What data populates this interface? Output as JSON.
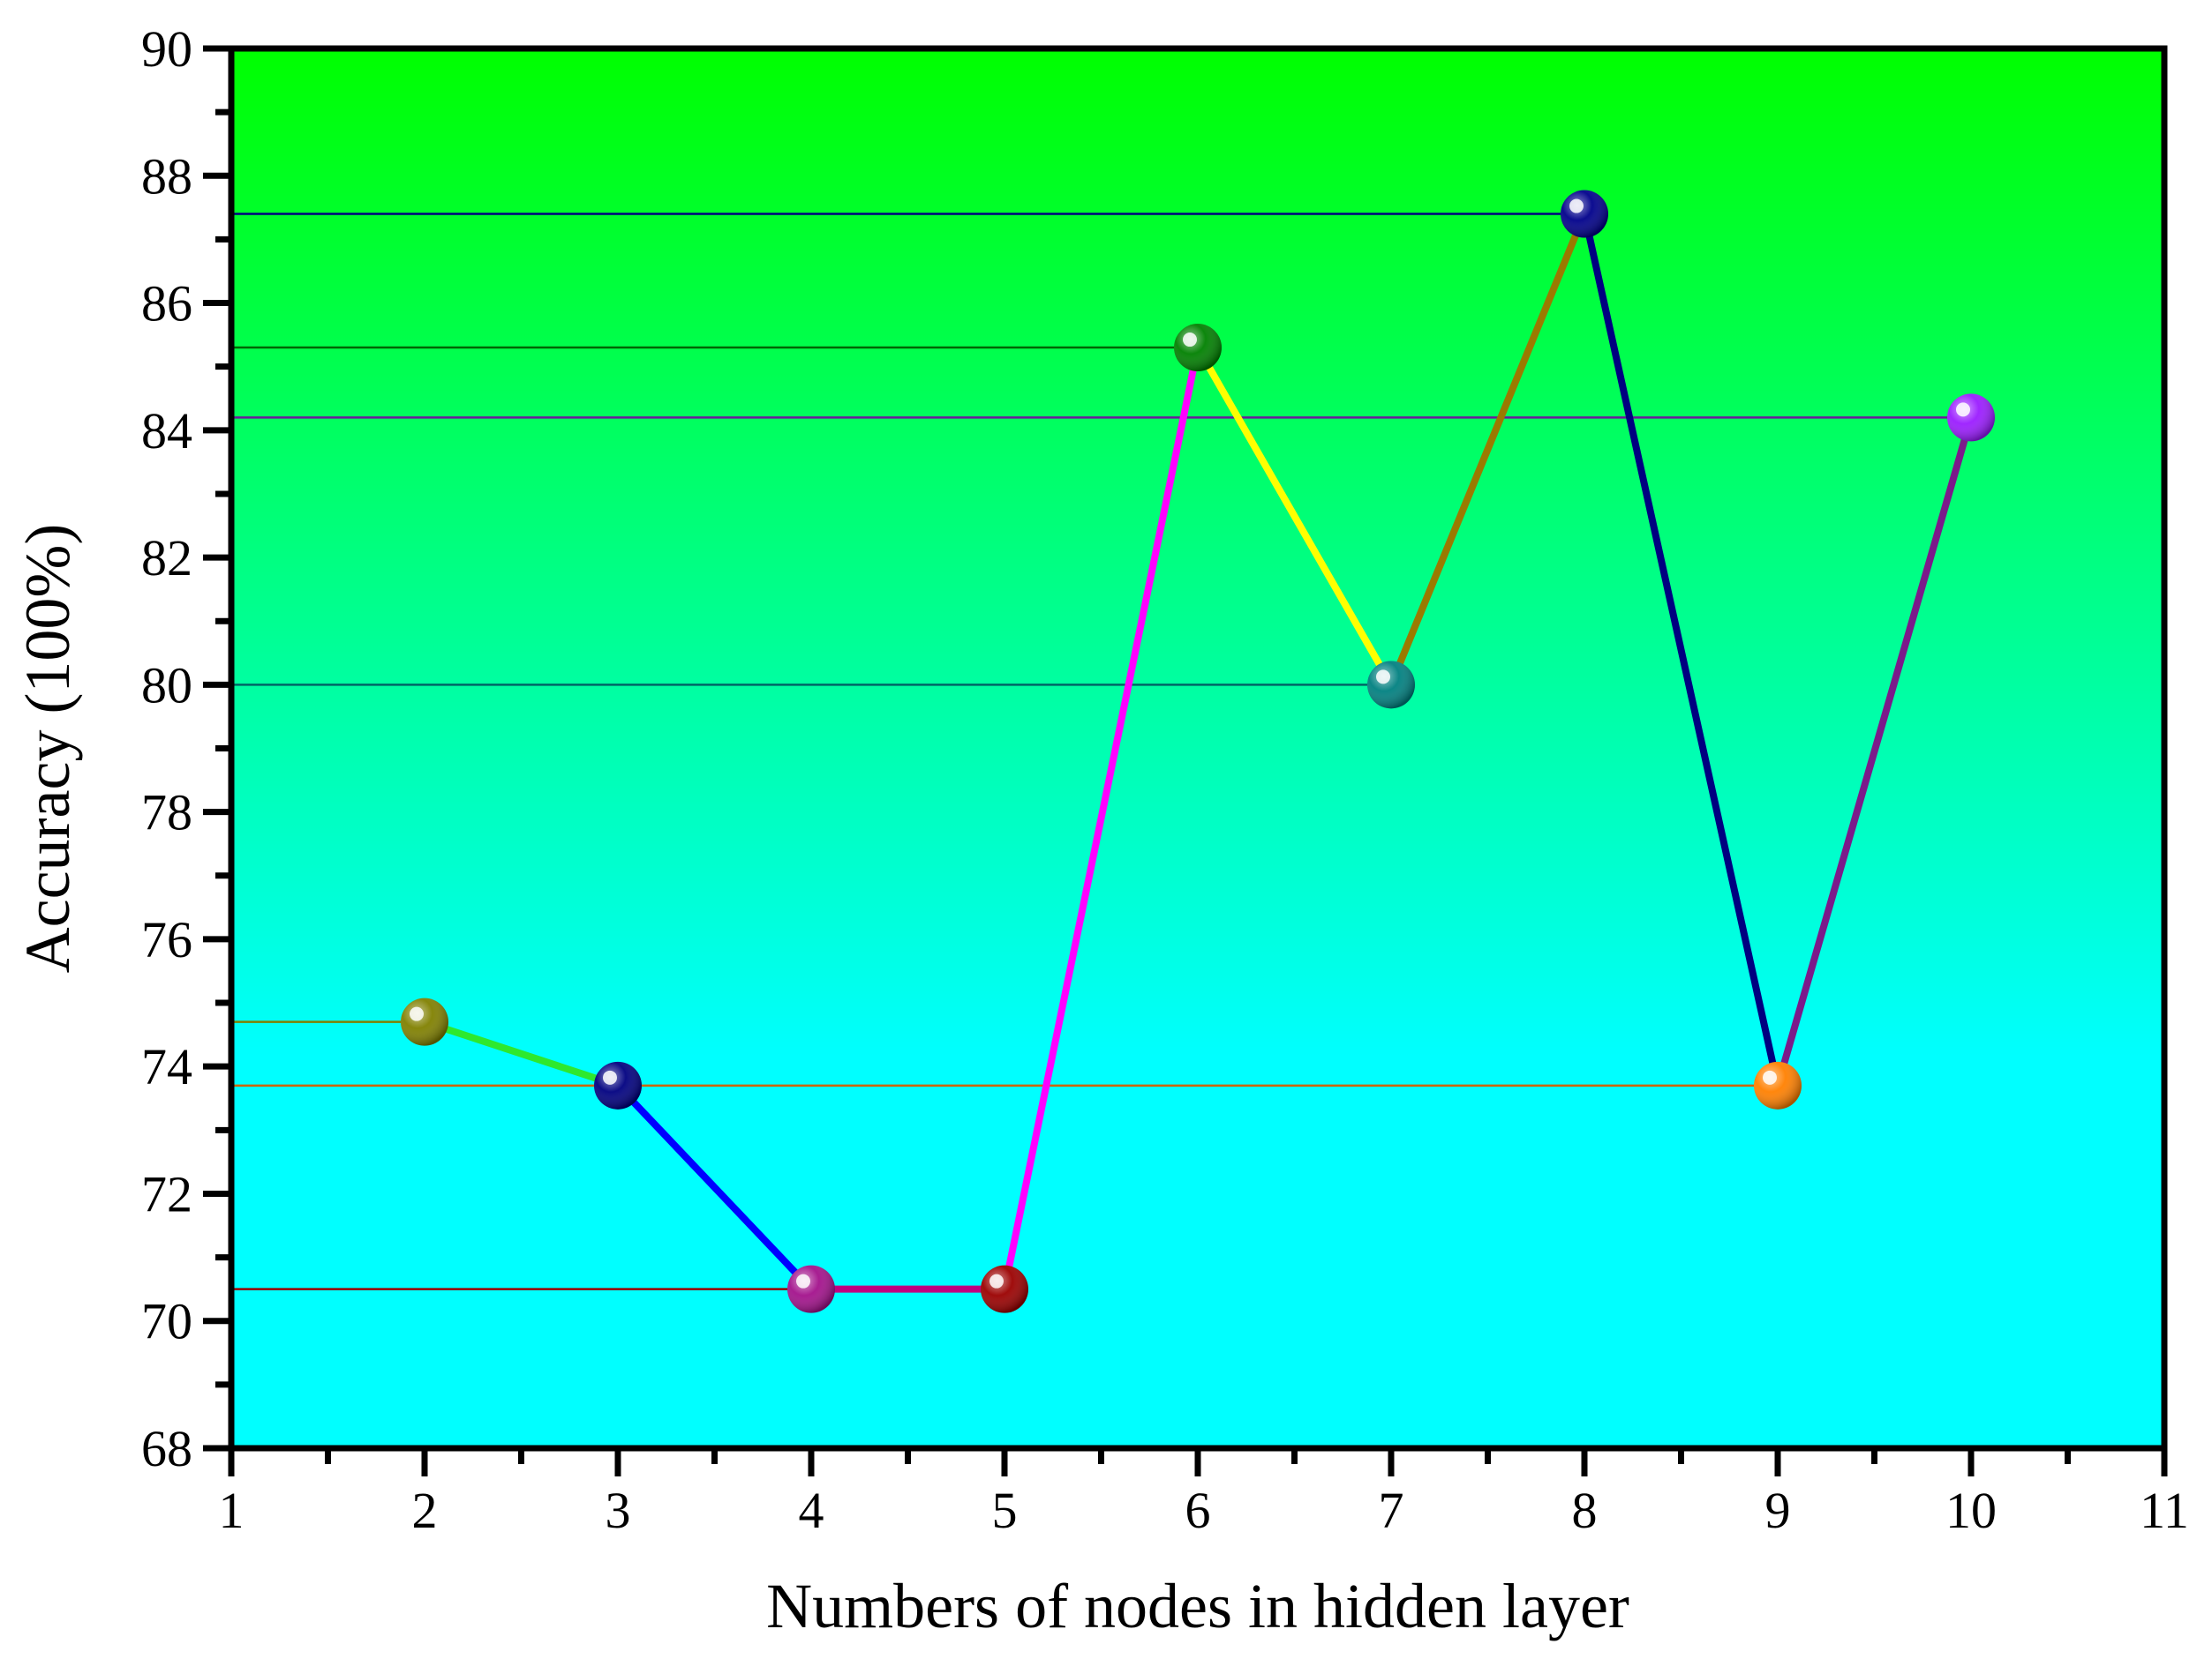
{
  "chart_data": {
    "type": "line",
    "title": "",
    "xlabel": "Numbers of nodes in hidden layer",
    "ylabel": "Accuracy (100%)",
    "xlim": [
      1,
      11
    ],
    "ylim": [
      68,
      90
    ],
    "x_ticks": [
      "1",
      "2",
      "3",
      "4",
      "5",
      "6",
      "7",
      "8",
      "9",
      "10",
      "11"
    ],
    "y_ticks": [
      "68",
      "70",
      "72",
      "74",
      "76",
      "78",
      "80",
      "82",
      "84",
      "86",
      "88",
      "90"
    ],
    "grid": false,
    "legend": "none",
    "background_gradient": {
      "top": "#00ff00",
      "bottom": "#00ffff"
    },
    "points": [
      {
        "x": 2,
        "y": 74.7,
        "color": "#808000"
      },
      {
        "x": 3,
        "y": 73.7,
        "color": "#000080"
      },
      {
        "x": 4,
        "y": 70.5,
        "color": "#a3128c"
      },
      {
        "x": 5,
        "y": 70.5,
        "color": "#9b0000"
      },
      {
        "x": 6,
        "y": 85.3,
        "color": "#008000"
      },
      {
        "x": 7,
        "y": 80.0,
        "color": "#008080"
      },
      {
        "x": 8,
        "y": 87.4,
        "color": "#00008b"
      },
      {
        "x": 9,
        "y": 73.7,
        "color": "#ff8000"
      },
      {
        "x": 10,
        "y": 84.2,
        "color": "#9b1cff"
      }
    ],
    "segment_colors": [
      "#2ee82e",
      "#0000ff",
      "#c00080",
      "#ff00ff",
      "#ffff00",
      "#9a7a00",
      "#000080",
      "#7b1a8a"
    ],
    "reference_lines": [
      {
        "y": 74.7,
        "to_x": 2,
        "color": "#808000"
      },
      {
        "y": 73.7,
        "to_x": 9,
        "color": "#cc6600"
      },
      {
        "y": 70.5,
        "to_x": 5,
        "color": "#9b0000"
      },
      {
        "y": 85.3,
        "to_x": 6,
        "color": "#006600"
      },
      {
        "y": 80.0,
        "to_x": 7,
        "color": "#006666"
      },
      {
        "y": 87.4,
        "to_x": 8,
        "color": "#000080"
      },
      {
        "y": 84.2,
        "to_x": 10,
        "color": "#6a1a9a"
      }
    ]
  }
}
